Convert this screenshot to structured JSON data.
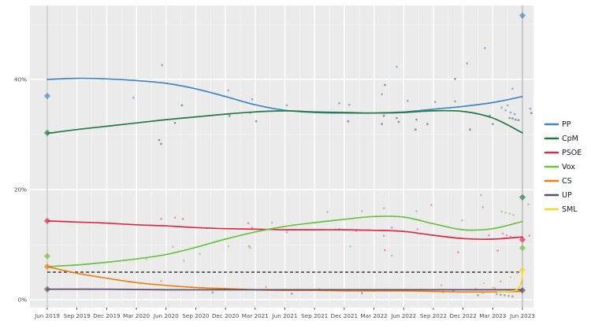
{
  "chart_data": {
    "type": "scatter",
    "title": "",
    "subtitle": "",
    "x_axis": {
      "label": "",
      "tick_months": [
        0,
        3,
        6,
        9,
        12,
        15,
        18,
        21,
        24,
        27,
        30,
        33,
        36,
        39,
        42,
        45,
        48
      ],
      "tick_labels": [
        "Jun 2019",
        "Sep 2019",
        "Dec 2019",
        "Mar 2020",
        "Jun 2020",
        "Sep 2020",
        "Dec 2020",
        "Mar 2021",
        "Jun 2021",
        "Sep 2021",
        "Dec 2021",
        "Mar 2022",
        "Jun 2022",
        "Sep 2022",
        "Dec 2022",
        "Mar 2023",
        "Jun 2023"
      ],
      "range_months": [
        -1.8,
        49.2
      ]
    },
    "y_axis": {
      "label": "",
      "tick_values": [
        0,
        20,
        40
      ],
      "tick_labels": [
        "0%",
        "20%",
        "40%"
      ],
      "minor_values": [
        10,
        30,
        50
      ],
      "range": [
        -1.6,
        53.6
      ],
      "unit": "%"
    },
    "grid": {
      "background": "#ebebeb",
      "major_color": "#ffffff",
      "minor_color": "#f5f5f5"
    },
    "threshold_line": {
      "value": 5,
      "style": "dashed",
      "color": "#3a3a3a",
      "from_month": 0,
      "to_month": 48
    },
    "reference_dates": [
      {
        "label": "Jun 2019",
        "month": 0,
        "color": "#b5b5b5"
      },
      {
        "label": "Jun 2023",
        "month": 48,
        "color": "#9a9a9a"
      }
    ],
    "legend": {
      "position": "right",
      "items": [
        "PP",
        "CpM",
        "PSOE",
        "Vox",
        "CS",
        "UP",
        "SML"
      ]
    },
    "series": [
      {
        "name": "PP",
        "color": "#3e86c6",
        "scatter_color": "#8fa8bd",
        "line": [
          [
            0,
            40.0
          ],
          [
            3,
            40.2
          ],
          [
            6,
            40.1
          ],
          [
            9,
            39.8
          ],
          [
            12,
            39.3
          ],
          [
            15,
            38.3
          ],
          [
            18,
            36.9
          ],
          [
            21,
            35.4
          ],
          [
            24,
            34.4
          ],
          [
            27,
            34.0
          ],
          [
            30,
            33.9
          ],
          [
            33,
            33.9
          ],
          [
            36,
            34.1
          ],
          [
            39,
            34.6
          ],
          [
            42,
            35.1
          ],
          [
            45,
            35.8
          ],
          [
            48,
            36.9
          ]
        ],
        "scatter": [
          [
            8.7,
            36.7
          ],
          [
            11.6,
            42.6
          ],
          [
            18.3,
            38.0
          ],
          [
            20.7,
            36.4
          ],
          [
            24.2,
            35.3
          ],
          [
            29.5,
            35.7
          ],
          [
            30.5,
            35.4
          ],
          [
            33.8,
            37.3
          ],
          [
            35.3,
            42.3
          ],
          [
            36.4,
            36.1
          ],
          [
            39.2,
            35.9
          ],
          [
            41.2,
            36.0
          ],
          [
            42.4,
            42.9
          ],
          [
            44.2,
            45.7
          ],
          [
            47.0,
            38.3
          ],
          [
            45.9,
            34.9
          ],
          [
            46.3,
            34.4
          ],
          [
            46.8,
            34.0
          ],
          [
            47.2,
            33.7
          ],
          [
            46.5,
            35.3
          ],
          [
            48.8,
            34.7
          ]
        ]
      },
      {
        "name": "CpM",
        "color": "#227a3f",
        "scatter_color": "#6e968a",
        "line": [
          [
            0,
            30.2
          ],
          [
            3,
            30.9
          ],
          [
            6,
            31.5
          ],
          [
            9,
            32.1
          ],
          [
            12,
            32.7
          ],
          [
            15,
            33.2
          ],
          [
            18,
            33.7
          ],
          [
            21,
            34.1
          ],
          [
            24,
            34.3
          ],
          [
            27,
            34.1
          ],
          [
            30,
            34.0
          ],
          [
            33,
            33.9
          ],
          [
            36,
            34.0
          ],
          [
            39,
            34.3
          ],
          [
            42,
            34.2
          ],
          [
            45,
            33.0
          ],
          [
            48,
            30.3
          ]
        ],
        "scatter": [
          [
            11.3,
            29.0
          ],
          [
            11.5,
            28.3
          ],
          [
            12.9,
            32.1
          ],
          [
            13.6,
            35.3
          ],
          [
            18.4,
            33.4
          ],
          [
            20.5,
            34.0
          ],
          [
            21.1,
            32.4
          ],
          [
            30.4,
            32.4
          ],
          [
            33.8,
            31.9
          ],
          [
            34.0,
            33.4
          ],
          [
            34.1,
            39.0
          ],
          [
            35.3,
            33.0
          ],
          [
            35.5,
            32.3
          ],
          [
            37.2,
            30.9
          ],
          [
            37.3,
            32.7
          ],
          [
            38.4,
            31.9
          ],
          [
            41.2,
            40.1
          ],
          [
            42.7,
            30.9
          ],
          [
            44.7,
            33.4
          ],
          [
            45.0,
            31.9
          ],
          [
            46.7,
            33.0
          ],
          [
            47.0,
            32.9
          ],
          [
            47.3,
            32.7
          ],
          [
            47.6,
            32.6
          ],
          [
            48.9,
            33.9
          ]
        ]
      },
      {
        "name": "PSOE",
        "color": "#d92b43",
        "scatter_color": "#eb8fa0",
        "line": [
          [
            0,
            14.3
          ],
          [
            3,
            14.1
          ],
          [
            6,
            13.9
          ],
          [
            9,
            13.6
          ],
          [
            12,
            13.4
          ],
          [
            15,
            13.1
          ],
          [
            18,
            12.9
          ],
          [
            21,
            12.8
          ],
          [
            24,
            12.7
          ],
          [
            27,
            12.7
          ],
          [
            30,
            12.7
          ],
          [
            33,
            12.6
          ],
          [
            36,
            12.4
          ],
          [
            39,
            11.7
          ],
          [
            42,
            11.1
          ],
          [
            45,
            11.0
          ],
          [
            48,
            11.4
          ]
        ],
        "scatter": [
          [
            11.5,
            14.7
          ],
          [
            12.9,
            14.9
          ],
          [
            13.7,
            14.7
          ],
          [
            16.1,
            13.0
          ],
          [
            20.3,
            13.9
          ],
          [
            20.7,
            13.1
          ],
          [
            20.4,
            9.7
          ],
          [
            24.2,
            12.3
          ],
          [
            29.5,
            12.8
          ],
          [
            31.2,
            12.5
          ],
          [
            34.0,
            11.6
          ],
          [
            34.1,
            9.0
          ],
          [
            34.8,
            13.1
          ],
          [
            38.8,
            17.2
          ],
          [
            37.4,
            12.8
          ],
          [
            41.5,
            8.6
          ],
          [
            44.0,
            16.8
          ],
          [
            44.6,
            11.7
          ],
          [
            45.5,
            8.9
          ],
          [
            46.0,
            12.0
          ],
          [
            46.4,
            11.7
          ],
          [
            46.8,
            11.4
          ],
          [
            47.2,
            11.3
          ],
          [
            48.7,
            11.6
          ]
        ]
      },
      {
        "name": "Vox",
        "color": "#6cc13e",
        "scatter_color": "#abd28b",
        "line": [
          [
            0,
            6.0
          ],
          [
            3,
            6.3
          ],
          [
            6,
            6.8
          ],
          [
            9,
            7.4
          ],
          [
            12,
            8.2
          ],
          [
            15,
            9.5
          ],
          [
            18,
            11.0
          ],
          [
            21,
            12.3
          ],
          [
            24,
            13.3
          ],
          [
            27,
            14.0
          ],
          [
            30,
            14.6
          ],
          [
            33,
            15.1
          ],
          [
            36,
            15.0
          ],
          [
            39,
            13.8
          ],
          [
            42,
            12.7
          ],
          [
            45,
            12.9
          ],
          [
            48,
            14.2
          ]
        ],
        "scatter": [
          [
            10.0,
            7.4
          ],
          [
            12.7,
            9.6
          ],
          [
            13.8,
            7.1
          ],
          [
            15.4,
            8.3
          ],
          [
            18.3,
            9.7
          ],
          [
            20.5,
            9.4
          ],
          [
            22.7,
            14.0
          ],
          [
            28.3,
            15.9
          ],
          [
            31.8,
            16.1
          ],
          [
            34.0,
            16.6
          ],
          [
            30.6,
            9.7
          ],
          [
            34.8,
            8.0
          ],
          [
            37.3,
            16.1
          ],
          [
            41.9,
            14.4
          ],
          [
            43.8,
            19.0
          ],
          [
            45.8,
            3.3
          ],
          [
            45.9,
            16.0
          ],
          [
            46.3,
            15.8
          ],
          [
            46.7,
            15.6
          ],
          [
            47.1,
            15.4
          ],
          [
            48.6,
            17.3
          ]
        ]
      },
      {
        "name": "CS",
        "color": "#ee7e16",
        "scatter_color": "#f0b377",
        "line": [
          [
            0,
            6.0
          ],
          [
            3,
            4.8
          ],
          [
            6,
            3.9
          ],
          [
            9,
            3.1
          ],
          [
            12,
            2.6
          ],
          [
            15,
            2.2
          ],
          [
            18,
            2.0
          ],
          [
            21,
            1.8
          ],
          [
            24,
            1.7
          ],
          [
            27,
            1.7
          ],
          [
            30,
            1.6
          ],
          [
            33,
            1.6
          ],
          [
            36,
            1.6
          ],
          [
            39,
            1.5
          ],
          [
            42,
            1.4
          ],
          [
            45,
            1.4
          ],
          [
            48,
            1.5
          ]
        ],
        "scatter": [
          [
            11.5,
            3.4
          ],
          [
            14.6,
            2.3
          ],
          [
            22.1,
            2.3
          ],
          [
            27.5,
            1.9
          ],
          [
            33.0,
            1.6
          ],
          [
            39.8,
            2.6
          ],
          [
            40.0,
            1.4
          ],
          [
            41.0,
            1.7
          ],
          [
            43.3,
            2.0
          ],
          [
            44.0,
            1.2
          ],
          [
            45.2,
            2.1
          ]
        ]
      },
      {
        "name": "UP",
        "color": "#5c4a68",
        "scatter_color": "#a29aae",
        "line": [
          [
            0,
            1.9
          ],
          [
            6,
            1.9
          ],
          [
            12,
            1.8
          ],
          [
            18,
            1.8
          ],
          [
            24,
            1.8
          ],
          [
            30,
            1.8
          ],
          [
            36,
            1.8
          ],
          [
            42,
            1.8
          ],
          [
            48,
            1.8
          ]
        ],
        "scatter": [
          [
            16.7,
            1.3
          ],
          [
            24.7,
            1.1
          ],
          [
            31.8,
            1.2
          ],
          [
            41.0,
            1.7
          ],
          [
            43.5,
            0.8
          ],
          [
            45.4,
            1.0
          ],
          [
            45.8,
            0.9
          ],
          [
            46.2,
            0.8
          ],
          [
            46.6,
            0.7
          ],
          [
            47.0,
            0.6
          ]
        ]
      },
      {
        "name": "SML",
        "color": "#f4d627",
        "scatter_color": "#e4d06e",
        "line": [
          [
            45.5,
            1.4
          ],
          [
            46.5,
            1.5
          ],
          [
            47.4,
            1.8
          ],
          [
            47.9,
            3.2
          ],
          [
            48,
            5.4
          ]
        ],
        "scatter": [
          [
            44.1,
            3.0
          ],
          [
            45.0,
            2.2
          ],
          [
            46.8,
            4.1
          ],
          [
            47.5,
            4.8
          ]
        ]
      }
    ],
    "election_results": [
      {
        "date": "Jun 2019",
        "month": 0,
        "party": "PP",
        "value": 37.0
      },
      {
        "date": "Jun 2019",
        "month": 0,
        "party": "CpM",
        "value": 30.3
      },
      {
        "date": "Jun 2019",
        "month": 0,
        "party": "PSOE",
        "value": 14.3
      },
      {
        "date": "Jun 2019",
        "month": 0,
        "party": "Vox",
        "value": 7.9
      },
      {
        "date": "Jun 2019",
        "month": 0,
        "party": "CS",
        "value": 6.0
      },
      {
        "date": "Jun 2019",
        "month": 0,
        "party": "UP",
        "value": 1.9
      },
      {
        "date": "Jun 2023",
        "month": 48,
        "party": "PP",
        "value": 51.6
      },
      {
        "date": "Jun 2023",
        "month": 48,
        "party": "CpM",
        "value": 18.6
      },
      {
        "date": "Jun 2023",
        "month": 48,
        "party": "PSOE",
        "value": 10.9
      },
      {
        "date": "Jun 2023",
        "month": 48,
        "party": "Vox",
        "value": 9.4
      },
      {
        "date": "Jun 2023",
        "month": 48,
        "party": "SML",
        "value": 5.4
      },
      {
        "date": "Jun 2023",
        "month": 48,
        "party": "UP",
        "value": 1.7
      }
    ]
  }
}
